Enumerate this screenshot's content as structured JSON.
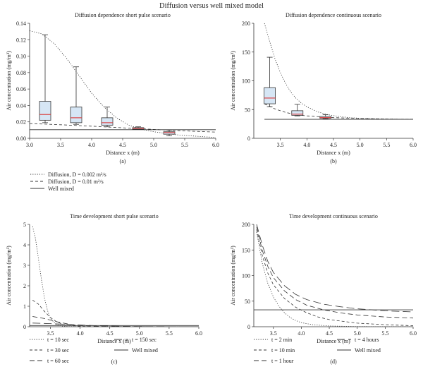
{
  "figure_title": "Diffusion versus well mixed model",
  "legends": {
    "top": [
      {
        "label": "Diffusion, D = 0.002 m²/s",
        "style": "dotted"
      },
      {
        "label": "Diffusion, D = 0.01 m²/s",
        "style": "dashed"
      },
      {
        "label": "Well mixed",
        "style": "solid"
      }
    ],
    "bottom_left": [
      {
        "label": "t = 10 sec",
        "style": "dotted"
      },
      {
        "label": "t = 30 sec",
        "style": "dashed"
      },
      {
        "label": "t = 60 sec",
        "style": "longdash"
      },
      {
        "label": "t = 150 sec",
        "style": "xlongdash"
      },
      {
        "label": "Well mixed",
        "style": "solid"
      }
    ],
    "bottom_right": [
      {
        "label": "t = 2 min",
        "style": "dotted"
      },
      {
        "label": "t = 10 min",
        "style": "dashed"
      },
      {
        "label": "t = 1 hour",
        "style": "longdash"
      },
      {
        "label": "t = 4 hours",
        "style": "xlongdash"
      },
      {
        "label": "Well mixed",
        "style": "solid"
      }
    ]
  },
  "chart_data": [
    {
      "id": "a",
      "type": "box+line",
      "panel_label": "(a)",
      "title": "Diffusion dependence short pulse scenario",
      "xlabel": "Distance x (m)",
      "ylabel": "Air concentration (mg/m³)",
      "xlim": [
        3.0,
        6.0
      ],
      "ylim": [
        0,
        0.14
      ],
      "xticks": [
        "3.0",
        "3.5",
        "4.0",
        "4.5",
        "5.0",
        "5.5",
        "6.0"
      ],
      "yticks": [
        "0.00",
        "0.02",
        "0.04",
        "0.06",
        "0.08",
        "0.10",
        "0.12",
        "0.14"
      ],
      "boxes": [
        {
          "x": 3.25,
          "whisker_low": 0.019,
          "q1": 0.022,
          "median": 0.029,
          "q3": 0.045,
          "whisker_high": 0.126
        },
        {
          "x": 3.75,
          "whisker_low": 0.017,
          "q1": 0.019,
          "median": 0.025,
          "q3": 0.038,
          "whisker_high": 0.087
        },
        {
          "x": 4.25,
          "whisker_low": 0.014,
          "q1": 0.016,
          "median": 0.019,
          "q3": 0.025,
          "whisker_high": 0.038
        },
        {
          "x": 4.75,
          "whisker_low": 0.011,
          "q1": 0.011,
          "median": 0.012,
          "q3": 0.013,
          "whisker_high": 0.014
        },
        {
          "x": 5.25,
          "whisker_low": 0.003,
          "q1": 0.005,
          "median": 0.007,
          "q3": 0.008,
          "whisker_high": 0.01
        }
      ],
      "series": [
        {
          "style": "dotted",
          "x": [
            3.0,
            3.2,
            3.4,
            3.6,
            3.8,
            4.0,
            4.2,
            4.4,
            4.6,
            4.8,
            5.0,
            5.2,
            5.4,
            5.6,
            5.8,
            6.0
          ],
          "y": [
            0.131,
            0.127,
            0.115,
            0.097,
            0.076,
            0.055,
            0.038,
            0.025,
            0.016,
            0.011,
            0.008,
            0.006,
            0.004,
            0.003,
            0.002,
            0.001
          ]
        },
        {
          "style": "dashed",
          "x": [
            3.0,
            3.5,
            4.0,
            4.5,
            5.0,
            5.5,
            6.0
          ],
          "y": [
            0.018,
            0.0165,
            0.0148,
            0.0128,
            0.0108,
            0.009,
            0.0076
          ]
        },
        {
          "style": "solid",
          "x": [
            3.0,
            6.0
          ],
          "y": [
            0.0105,
            0.0105
          ]
        }
      ]
    },
    {
      "id": "b",
      "type": "box+line",
      "panel_label": "(b)",
      "title": "Diffusion dependence continuous scenario",
      "xlabel": "Distance x (m)",
      "ylabel": "Air concentration (mg/m³)",
      "xlim": [
        3.0,
        6.0
      ],
      "ylim": [
        0,
        200
      ],
      "xticks": [
        "3.5",
        "4.0",
        "4.5",
        "5.0",
        "5.5",
        "6.0"
      ],
      "yticks": [
        "0",
        "50",
        "100",
        "150",
        "200"
      ],
      "boxes": [
        {
          "x": 3.3,
          "whisker_low": 55,
          "q1": 60,
          "median": 70,
          "q3": 88,
          "whisker_high": 141
        },
        {
          "x": 3.82,
          "whisker_low": 39,
          "q1": 40,
          "median": 42,
          "q3": 48,
          "whisker_high": 59
        },
        {
          "x": 4.35,
          "whisker_low": 34,
          "q1": 35,
          "median": 36,
          "q3": 38,
          "whisker_high": 41
        }
      ],
      "series": [
        {
          "style": "dotted",
          "x": [
            3.2,
            3.3,
            3.4,
            3.5,
            3.6,
            3.7,
            3.8,
            3.9,
            4.0,
            4.2,
            4.4,
            4.6,
            4.8,
            5.0,
            5.5,
            6.0
          ],
          "y": [
            200,
            168,
            138,
            114,
            95,
            80,
            69,
            61,
            55,
            46,
            41,
            38,
            36,
            35,
            33.5,
            33
          ]
        },
        {
          "style": "dashed",
          "x": [
            3.2,
            3.4,
            3.6,
            3.8,
            4.0,
            4.5,
            5.0,
            5.5,
            6.0
          ],
          "y": [
            60,
            51,
            45,
            41,
            39,
            36,
            34.5,
            33.5,
            33
          ]
        },
        {
          "style": "solid",
          "x": [
            3.2,
            6.0
          ],
          "y": [
            33,
            33
          ]
        }
      ]
    },
    {
      "id": "c",
      "type": "line",
      "panel_label": "(c)",
      "title": "Time development short pulse scenario",
      "xlabel": "Distance x (m)",
      "ylabel": "Air concentration (mg/m³)",
      "xlim": [
        3.15,
        6.0
      ],
      "ylim": [
        0,
        5
      ],
      "xticks": [
        "3.5",
        "4.0",
        "4.5",
        "5.0",
        "5.5",
        "6.0"
      ],
      "yticks": [
        "0",
        "1",
        "2",
        "3",
        "4",
        "5"
      ],
      "series": [
        {
          "style": "dotted",
          "x": [
            3.2,
            3.25,
            3.3,
            3.35,
            3.4,
            3.45,
            3.5,
            3.6,
            3.7,
            3.8,
            4.0,
            6.0
          ],
          "y": [
            4.9,
            4.3,
            3.3,
            2.3,
            1.4,
            0.8,
            0.4,
            0.1,
            0.03,
            0.01,
            0.0,
            0.0
          ]
        },
        {
          "style": "dashed",
          "x": [
            3.2,
            3.3,
            3.4,
            3.5,
            3.6,
            3.7,
            3.8,
            4.0,
            4.2,
            6.0
          ],
          "y": [
            1.3,
            1.1,
            0.75,
            0.45,
            0.25,
            0.13,
            0.07,
            0.02,
            0.0,
            0.0
          ]
        },
        {
          "style": "longdash",
          "x": [
            3.2,
            3.4,
            3.6,
            3.8,
            4.0,
            4.2,
            4.4,
            6.0
          ],
          "y": [
            0.5,
            0.4,
            0.25,
            0.13,
            0.06,
            0.03,
            0.01,
            0.0
          ]
        },
        {
          "style": "xlongdash",
          "x": [
            3.2,
            3.5,
            3.8,
            4.1,
            4.4,
            4.7,
            5.0,
            6.0
          ],
          "y": [
            0.18,
            0.15,
            0.11,
            0.07,
            0.04,
            0.02,
            0.01,
            0.0
          ]
        },
        {
          "style": "solid",
          "x": [
            3.15,
            6.0
          ],
          "y": [
            0.06,
            0.06
          ]
        }
      ]
    },
    {
      "id": "d",
      "type": "line",
      "panel_label": "(d)",
      "title": "Time development continuous scenario",
      "xlabel": "Distance x (m)",
      "ylabel": "Air concentration (mg/m³)",
      "xlim": [
        3.15,
        6.0
      ],
      "ylim": [
        0,
        200
      ],
      "xticks": [
        "3.5",
        "4.0",
        "4.5",
        "5.0",
        "5.5",
        "6.0"
      ],
      "yticks": [
        "0",
        "50",
        "100",
        "150",
        "200"
      ],
      "series": [
        {
          "style": "dotted",
          "x": [
            3.2,
            3.3,
            3.4,
            3.5,
            3.6,
            3.7,
            3.8,
            3.9,
            4.0,
            4.2,
            4.5,
            5.0,
            6.0
          ],
          "y": [
            185,
            125,
            85,
            58,
            40,
            27,
            18,
            12,
            8,
            4,
            1.5,
            0.3,
            0
          ]
        },
        {
          "style": "dashed",
          "x": [
            3.2,
            3.3,
            3.4,
            3.5,
            3.7,
            3.9,
            4.1,
            4.3,
            4.5,
            5.0,
            5.5,
            6.0
          ],
          "y": [
            190,
            140,
            105,
            82,
            55,
            38,
            27,
            19,
            14,
            7,
            4,
            2
          ]
        },
        {
          "style": "longdash",
          "x": [
            3.2,
            3.3,
            3.4,
            3.5,
            3.7,
            3.9,
            4.1,
            4.4,
            4.7,
            5.0,
            5.5,
            6.0
          ],
          "y": [
            195,
            150,
            118,
            96,
            70,
            53,
            42,
            33,
            27,
            23,
            19,
            17
          ]
        },
        {
          "style": "xlongdash",
          "x": [
            3.2,
            3.3,
            3.4,
            3.5,
            3.7,
            3.9,
            4.1,
            4.4,
            4.7,
            5.0,
            5.5,
            6.0
          ],
          "y": [
            200,
            160,
            128,
            106,
            80,
            63,
            53,
            44,
            39,
            35,
            31,
            29
          ]
        },
        {
          "style": "solid",
          "x": [
            3.15,
            6.0
          ],
          "y": [
            33,
            33
          ]
        }
      ]
    }
  ]
}
